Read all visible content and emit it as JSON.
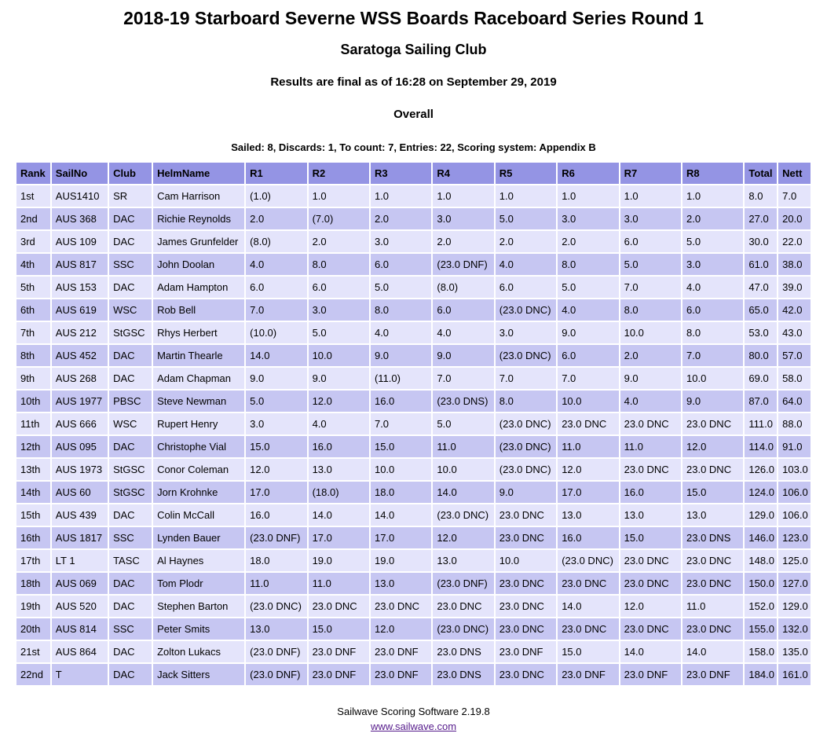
{
  "header": {
    "title": "2018-19 Starboard Severne WSS Boards Raceboard Series Round 1",
    "club": "Saratoga Sailing Club",
    "final_note": "Results are final as of 16:28 on September 29, 2019",
    "section": "Overall",
    "summary": "Sailed: 8, Discards: 1, To count: 7, Entries: 22, Scoring system: Appendix B"
  },
  "table": {
    "columns": [
      "Rank",
      "SailNo",
      "Club",
      "HelmName",
      "R1",
      "R2",
      "R3",
      "R4",
      "R5",
      "R6",
      "R7",
      "R8",
      "Total",
      "Nett"
    ],
    "rows": [
      [
        "1st",
        "AUS1410",
        "SR",
        "Cam Harrison",
        "(1.0)",
        "1.0",
        "1.0",
        "1.0",
        "1.0",
        "1.0",
        "1.0",
        "1.0",
        "8.0",
        "7.0"
      ],
      [
        "2nd",
        "AUS 368",
        "DAC",
        "Richie Reynolds",
        "2.0",
        "(7.0)",
        "2.0",
        "3.0",
        "5.0",
        "3.0",
        "3.0",
        "2.0",
        "27.0",
        "20.0"
      ],
      [
        "3rd",
        "AUS 109",
        "DAC",
        "James Grunfelder",
        "(8.0)",
        "2.0",
        "3.0",
        "2.0",
        "2.0",
        "2.0",
        "6.0",
        "5.0",
        "30.0",
        "22.0"
      ],
      [
        "4th",
        "AUS 817",
        "SSC",
        "John Doolan",
        "4.0",
        "8.0",
        "6.0",
        "(23.0 DNF)",
        "4.0",
        "8.0",
        "5.0",
        "3.0",
        "61.0",
        "38.0"
      ],
      [
        "5th",
        "AUS 153",
        "DAC",
        "Adam Hampton",
        "6.0",
        "6.0",
        "5.0",
        "(8.0)",
        "6.0",
        "5.0",
        "7.0",
        "4.0",
        "47.0",
        "39.0"
      ],
      [
        "6th",
        "AUS 619",
        "WSC",
        "Rob Bell",
        "7.0",
        "3.0",
        "8.0",
        "6.0",
        "(23.0 DNC)",
        "4.0",
        "8.0",
        "6.0",
        "65.0",
        "42.0"
      ],
      [
        "7th",
        "AUS 212",
        "StGSC",
        "Rhys Herbert",
        "(10.0)",
        "5.0",
        "4.0",
        "4.0",
        "3.0",
        "9.0",
        "10.0",
        "8.0",
        "53.0",
        "43.0"
      ],
      [
        "8th",
        "AUS 452",
        "DAC",
        "Martin Thearle",
        "14.0",
        "10.0",
        "9.0",
        "9.0",
        "(23.0 DNC)",
        "6.0",
        "2.0",
        "7.0",
        "80.0",
        "57.0"
      ],
      [
        "9th",
        "AUS 268",
        "DAC",
        "Adam Chapman",
        "9.0",
        "9.0",
        "(11.0)",
        "7.0",
        "7.0",
        "7.0",
        "9.0",
        "10.0",
        "69.0",
        "58.0"
      ],
      [
        "10th",
        "AUS 1977",
        "PBSC",
        "Steve Newman",
        "5.0",
        "12.0",
        "16.0",
        "(23.0 DNS)",
        "8.0",
        "10.0",
        "4.0",
        "9.0",
        "87.0",
        "64.0"
      ],
      [
        "11th",
        "AUS 666",
        "WSC",
        "Rupert Henry",
        "3.0",
        "4.0",
        "7.0",
        "5.0",
        "(23.0 DNC)",
        "23.0 DNC",
        "23.0 DNC",
        "23.0 DNC",
        "111.0",
        "88.0"
      ],
      [
        "12th",
        "AUS 095",
        "DAC",
        "Christophe Vial",
        "15.0",
        "16.0",
        "15.0",
        "11.0",
        "(23.0 DNC)",
        "11.0",
        "11.0",
        "12.0",
        "114.0",
        "91.0"
      ],
      [
        "13th",
        "AUS 1973",
        "StGSC",
        "Conor Coleman",
        "12.0",
        "13.0",
        "10.0",
        "10.0",
        "(23.0 DNC)",
        "12.0",
        "23.0 DNC",
        "23.0 DNC",
        "126.0",
        "103.0"
      ],
      [
        "14th",
        "AUS 60",
        "StGSC",
        "Jorn Krohnke",
        "17.0",
        "(18.0)",
        "18.0",
        "14.0",
        "9.0",
        "17.0",
        "16.0",
        "15.0",
        "124.0",
        "106.0"
      ],
      [
        "15th",
        "AUS 439",
        "DAC",
        "Colin McCall",
        "16.0",
        "14.0",
        "14.0",
        "(23.0 DNC)",
        "23.0 DNC",
        "13.0",
        "13.0",
        "13.0",
        "129.0",
        "106.0"
      ],
      [
        "16th",
        "AUS 1817",
        "SSC",
        "Lynden Bauer",
        "(23.0 DNF)",
        "17.0",
        "17.0",
        "12.0",
        "23.0 DNC",
        "16.0",
        "15.0",
        "23.0 DNS",
        "146.0",
        "123.0"
      ],
      [
        "17th",
        "LT 1",
        "TASC",
        "Al Haynes",
        "18.0",
        "19.0",
        "19.0",
        "13.0",
        "10.0",
        "(23.0 DNC)",
        "23.0 DNC",
        "23.0 DNC",
        "148.0",
        "125.0"
      ],
      [
        "18th",
        "AUS 069",
        "DAC",
        "Tom Plodr",
        "11.0",
        "11.0",
        "13.0",
        "(23.0 DNF)",
        "23.0 DNC",
        "23.0 DNC",
        "23.0 DNC",
        "23.0 DNC",
        "150.0",
        "127.0"
      ],
      [
        "19th",
        "AUS 520",
        "DAC",
        "Stephen Barton",
        "(23.0 DNC)",
        "23.0 DNC",
        "23.0 DNC",
        "23.0 DNC",
        "23.0 DNC",
        "14.0",
        "12.0",
        "11.0",
        "152.0",
        "129.0"
      ],
      [
        "20th",
        "AUS 814",
        "SSC",
        "Peter Smits",
        "13.0",
        "15.0",
        "12.0",
        "(23.0 DNC)",
        "23.0 DNC",
        "23.0 DNC",
        "23.0 DNC",
        "23.0 DNC",
        "155.0",
        "132.0"
      ],
      [
        "21st",
        "AUS 864",
        "DAC",
        "Zolton Lukacs",
        "(23.0 DNF)",
        "23.0 DNF",
        "23.0 DNF",
        "23.0 DNS",
        "23.0 DNF",
        "15.0",
        "14.0",
        "14.0",
        "158.0",
        "135.0"
      ],
      [
        "22nd",
        "T",
        "DAC",
        "Jack Sitters",
        "(23.0 DNF)",
        "23.0 DNF",
        "23.0 DNF",
        "23.0 DNS",
        "23.0 DNC",
        "23.0 DNF",
        "23.0 DNF",
        "23.0 DNF",
        "184.0",
        "161.0"
      ]
    ]
  },
  "footer": {
    "software": "Sailwave Scoring Software 2.19.8",
    "link": "www.sailwave.com"
  },
  "colors": {
    "header_bg": "#9494e4",
    "row_odd": "#e4e4fb",
    "row_even": "#c6c6f2",
    "link_color": "#551a8b"
  }
}
